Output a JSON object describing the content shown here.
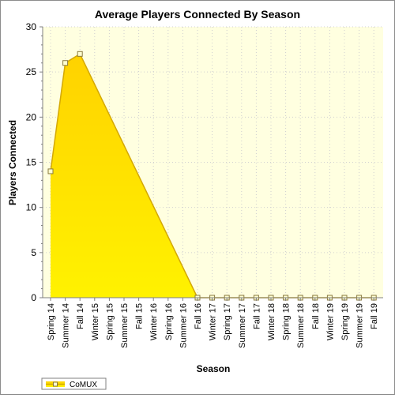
{
  "chart_data": {
    "type": "area",
    "title": "Average Players Connected By Season",
    "xlabel": "Season",
    "ylabel": "Players Connected",
    "ylim": [
      0,
      30
    ],
    "yticks": [
      0,
      5,
      10,
      15,
      20,
      25,
      30
    ],
    "grid": true,
    "legend_position": "bottom-left",
    "categories": [
      "Spring 14",
      "Summer 14",
      "Fall 14",
      "Winter 15",
      "Spring 15",
      "Summer 15",
      "Fall 15",
      "Winter 16",
      "Spring 16",
      "Summer 16",
      "Fall 16",
      "Winter 17",
      "Spring 17",
      "Summer 17",
      "Fall 17",
      "Winter 18",
      "Spring 18",
      "Summer 18",
      "Fall 18",
      "Winter 19",
      "Spring 19",
      "Summer 19",
      "Fall 19"
    ],
    "series": [
      {
        "name": "CoMUX",
        "values": [
          14,
          26,
          27,
          null,
          null,
          null,
          null,
          null,
          null,
          null,
          0,
          0,
          0,
          0,
          0,
          0,
          0,
          0,
          0,
          0,
          0,
          0,
          0
        ]
      }
    ],
    "colors": {
      "plot_background": "#ffffe0",
      "fill_top": "#ffd200",
      "fill_bottom": "#fff200",
      "line": "#d4a800",
      "marker_fill": "#ffffd0",
      "marker_stroke": "#8a7a40"
    }
  }
}
